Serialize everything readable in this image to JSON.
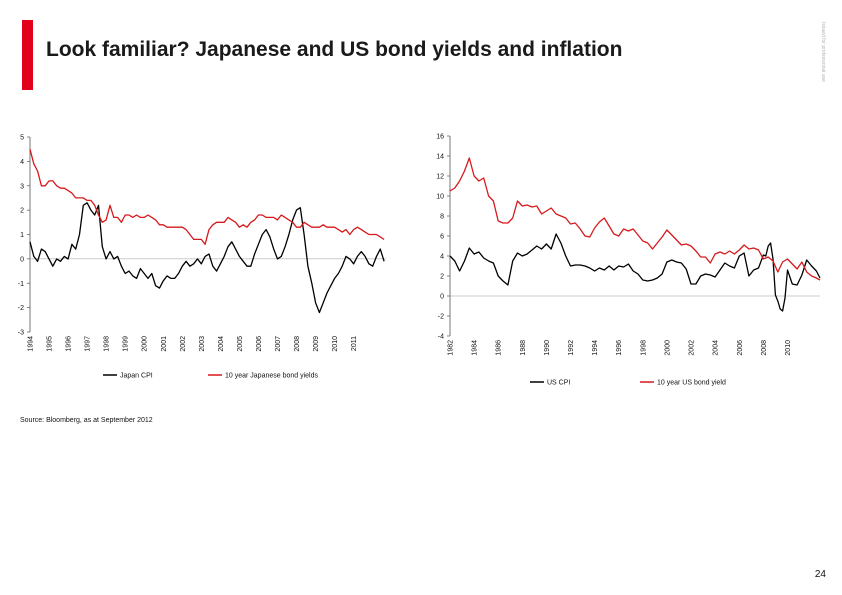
{
  "page": {
    "title": "Look familiar? Japanese and US bond yields and inflation",
    "side_note": "Issued for professional use",
    "source": "Source: Bloomberg, as at September 2012",
    "page_number": "24",
    "accent_color": "#e3001b"
  },
  "chart_data": [
    {
      "type": "line",
      "title": "",
      "ylim": [
        -3,
        5
      ],
      "yticks": [
        "5",
        "4",
        "3",
        "2",
        "1",
        "0",
        "-1",
        "-2",
        "-3"
      ],
      "xlim": [
        1994,
        2012.7
      ],
      "xticks": [
        "1994",
        "1995",
        "1996",
        "1997",
        "1998",
        "1999",
        "2000",
        "2001",
        "2002",
        "2003",
        "2004",
        "2005",
        "2006",
        "2007",
        "2008",
        "2009",
        "2010",
        "2011"
      ],
      "grid": false,
      "legend": "bottom",
      "series": [
        {
          "name": "Japan CPI",
          "color": "#000000",
          "x": [
            1994.0,
            1994.2,
            1994.4,
            1994.6,
            1994.8,
            1995.0,
            1995.2,
            1995.4,
            1995.6,
            1995.8,
            1996.0,
            1996.2,
            1996.4,
            1996.6,
            1996.8,
            1997.0,
            1997.2,
            1997.4,
            1997.6,
            1997.8,
            1998.0,
            1998.2,
            1998.4,
            1998.6,
            1998.8,
            1999.0,
            1999.2,
            1999.4,
            1999.6,
            1999.8,
            2000.0,
            2000.2,
            2000.4,
            2000.6,
            2000.8,
            2001.0,
            2001.2,
            2001.4,
            2001.6,
            2001.8,
            2002.0,
            2002.2,
            2002.4,
            2002.6,
            2002.8,
            2003.0,
            2003.2,
            2003.4,
            2003.6,
            2003.8,
            2004.0,
            2004.2,
            2004.4,
            2004.6,
            2004.8,
            2005.0,
            2005.2,
            2005.4,
            2005.6,
            2005.8,
            2006.0,
            2006.2,
            2006.4,
            2006.6,
            2006.8,
            2007.0,
            2007.2,
            2007.4,
            2007.6,
            2007.8,
            2008.0,
            2008.2,
            2008.4,
            2008.6,
            2008.8,
            2009.0,
            2009.2,
            2009.4,
            2009.6,
            2009.8,
            2010.0,
            2010.2,
            2010.4,
            2010.6,
            2010.8,
            2011.0,
            2011.2,
            2011.4,
            2011.6,
            2011.8,
            2012.0,
            2012.2,
            2012.4,
            2012.6
          ],
          "y": [
            0.7,
            0.1,
            -0.1,
            0.4,
            0.3,
            0.0,
            -0.3,
            0.0,
            -0.1,
            0.1,
            0.0,
            0.6,
            0.4,
            1.0,
            2.2,
            2.3,
            2.0,
            1.8,
            2.2,
            0.5,
            0.0,
            0.3,
            0.0,
            0.1,
            -0.3,
            -0.6,
            -0.5,
            -0.7,
            -0.8,
            -0.4,
            -0.6,
            -0.8,
            -0.6,
            -1.1,
            -1.2,
            -0.9,
            -0.7,
            -0.8,
            -0.8,
            -0.6,
            -0.3,
            -0.1,
            -0.3,
            -0.2,
            0.0,
            -0.2,
            0.1,
            0.2,
            -0.3,
            -0.5,
            -0.2,
            0.1,
            0.5,
            0.7,
            0.4,
            0.1,
            -0.1,
            -0.3,
            -0.3,
            0.2,
            0.6,
            1.0,
            1.2,
            0.9,
            0.4,
            0.0,
            0.1,
            0.5,
            1.0,
            1.6,
            2.0,
            2.1,
            1.0,
            -0.3,
            -1.0,
            -1.8,
            -2.2,
            -1.8,
            -1.4,
            -1.1,
            -0.8,
            -0.6,
            -0.3,
            0.1,
            0.0,
            -0.2,
            0.1,
            0.3,
            0.1,
            -0.2,
            -0.3,
            0.1,
            0.4,
            -0.1
          ]
        },
        {
          "name": "10 year Japanese bond yields",
          "color": "#d7191c",
          "x": [
            1994.0,
            1994.2,
            1994.4,
            1994.6,
            1994.8,
            1995.0,
            1995.2,
            1995.4,
            1995.6,
            1995.8,
            1996.0,
            1996.2,
            1996.4,
            1996.6,
            1996.8,
            1997.0,
            1997.2,
            1997.4,
            1997.6,
            1997.8,
            1998.0,
            1998.2,
            1998.4,
            1998.6,
            1998.8,
            1999.0,
            1999.2,
            1999.4,
            1999.6,
            1999.8,
            2000.0,
            2000.2,
            2000.4,
            2000.6,
            2000.8,
            2001.0,
            2001.2,
            2001.4,
            2001.6,
            2001.8,
            2002.0,
            2002.2,
            2002.4,
            2002.6,
            2002.8,
            2003.0,
            2003.2,
            2003.4,
            2003.6,
            2003.8,
            2004.0,
            2004.2,
            2004.4,
            2004.6,
            2004.8,
            2005.0,
            2005.2,
            2005.4,
            2005.6,
            2005.8,
            2006.0,
            2006.2,
            2006.4,
            2006.6,
            2006.8,
            2007.0,
            2007.2,
            2007.4,
            2007.6,
            2007.8,
            2008.0,
            2008.2,
            2008.4,
            2008.6,
            2008.8,
            2009.0,
            2009.2,
            2009.4,
            2009.6,
            2009.8,
            2010.0,
            2010.2,
            2010.4,
            2010.6,
            2010.8,
            2011.0,
            2011.2,
            2011.4,
            2011.6,
            2011.8,
            2012.0,
            2012.2,
            2012.4,
            2012.6
          ],
          "y": [
            4.5,
            3.9,
            3.6,
            3.0,
            3.0,
            3.2,
            3.2,
            3.0,
            2.9,
            2.9,
            2.8,
            2.7,
            2.5,
            2.5,
            2.5,
            2.4,
            2.4,
            2.2,
            1.8,
            1.5,
            1.6,
            2.2,
            1.7,
            1.7,
            1.5,
            1.8,
            1.8,
            1.7,
            1.8,
            1.7,
            1.7,
            1.8,
            1.7,
            1.6,
            1.4,
            1.4,
            1.3,
            1.3,
            1.3,
            1.3,
            1.3,
            1.2,
            1.0,
            0.8,
            0.8,
            0.8,
            0.6,
            1.2,
            1.4,
            1.5,
            1.5,
            1.5,
            1.7,
            1.6,
            1.5,
            1.3,
            1.4,
            1.3,
            1.5,
            1.6,
            1.8,
            1.8,
            1.7,
            1.7,
            1.7,
            1.6,
            1.8,
            1.7,
            1.6,
            1.5,
            1.3,
            1.3,
            1.5,
            1.4,
            1.3,
            1.3,
            1.3,
            1.4,
            1.3,
            1.3,
            1.3,
            1.2,
            1.1,
            1.2,
            1.0,
            1.2,
            1.3,
            1.2,
            1.1,
            1.0,
            1.0,
            1.0,
            0.9,
            0.8
          ]
        }
      ]
    },
    {
      "type": "line",
      "title": "",
      "ylim": [
        -4,
        16
      ],
      "yticks": [
        "16",
        "14",
        "12",
        "10",
        "8",
        "6",
        "4",
        "2",
        "0",
        "-2",
        "-4"
      ],
      "xlim": [
        1982,
        2012.7
      ],
      "xticks": [
        "1982",
        "1984",
        "1986",
        "1988",
        "1990",
        "1992",
        "1994",
        "1996",
        "1998",
        "2000",
        "2002",
        "2004",
        "2006",
        "2008",
        "2010"
      ],
      "grid": false,
      "legend": "bottom",
      "series": [
        {
          "name": "US CPI",
          "color": "#000000",
          "x": [
            1982.0,
            1982.4,
            1982.8,
            1983.2,
            1983.6,
            1984.0,
            1984.4,
            1984.8,
            1985.2,
            1985.6,
            1986.0,
            1986.4,
            1986.8,
            1987.2,
            1987.6,
            1988.0,
            1988.4,
            1988.8,
            1989.2,
            1989.6,
            1990.0,
            1990.4,
            1990.8,
            1991.2,
            1991.6,
            1992.0,
            1992.4,
            1992.8,
            1993.2,
            1993.6,
            1994.0,
            1994.4,
            1994.8,
            1995.2,
            1995.6,
            1996.0,
            1996.4,
            1996.8,
            1997.2,
            1997.6,
            1998.0,
            1998.4,
            1998.8,
            1999.2,
            1999.6,
            2000.0,
            2000.4,
            2000.8,
            2001.2,
            2001.6,
            2002.0,
            2002.4,
            2002.8,
            2003.2,
            2003.6,
            2004.0,
            2004.4,
            2004.8,
            2005.2,
            2005.6,
            2006.0,
            2006.4,
            2006.8,
            2007.2,
            2007.6,
            2008.0,
            2008.2,
            2008.4,
            2008.6,
            2008.8,
            2009.0,
            2009.2,
            2009.4,
            2009.6,
            2009.8,
            2010.0,
            2010.4,
            2010.8,
            2011.2,
            2011.6,
            2012.0,
            2012.4,
            2012.7
          ],
          "y": [
            4.0,
            3.5,
            2.5,
            3.5,
            4.8,
            4.2,
            4.4,
            3.8,
            3.5,
            3.3,
            2.0,
            1.5,
            1.1,
            3.5,
            4.3,
            4.0,
            4.2,
            4.6,
            5.0,
            4.7,
            5.2,
            4.7,
            6.2,
            5.3,
            4.0,
            3.0,
            3.1,
            3.1,
            3.0,
            2.8,
            2.5,
            2.8,
            2.6,
            3.0,
            2.6,
            3.0,
            2.9,
            3.2,
            2.5,
            2.2,
            1.6,
            1.5,
            1.6,
            1.8,
            2.2,
            3.4,
            3.6,
            3.4,
            3.3,
            2.7,
            1.2,
            1.2,
            2.0,
            2.2,
            2.1,
            1.9,
            2.6,
            3.3,
            3.0,
            2.8,
            4.0,
            4.3,
            2.0,
            2.6,
            2.8,
            4.1,
            4.0,
            5.0,
            5.3,
            3.7,
            0.1,
            -0.5,
            -1.3,
            -1.5,
            -0.2,
            2.6,
            1.2,
            1.1,
            2.1,
            3.6,
            3.0,
            2.5,
            1.8
          ]
        },
        {
          "name": "10 year US bond yield",
          "color": "#d7191c",
          "x": [
            1982.0,
            1982.4,
            1982.8,
            1983.2,
            1983.6,
            1984.0,
            1984.4,
            1984.8,
            1985.2,
            1985.6,
            1986.0,
            1986.4,
            1986.8,
            1987.2,
            1987.6,
            1988.0,
            1988.4,
            1988.8,
            1989.2,
            1989.6,
            1990.0,
            1990.4,
            1990.8,
            1991.2,
            1991.6,
            1992.0,
            1992.4,
            1992.8,
            1993.2,
            1993.6,
            1994.0,
            1994.4,
            1994.8,
            1995.2,
            1995.6,
            1996.0,
            1996.4,
            1996.8,
            1997.2,
            1997.6,
            1998.0,
            1998.4,
            1998.8,
            1999.2,
            1999.6,
            2000.0,
            2000.4,
            2000.8,
            2001.2,
            2001.6,
            2002.0,
            2002.4,
            2002.8,
            2003.2,
            2003.6,
            2004.0,
            2004.4,
            2004.8,
            2005.2,
            2005.6,
            2006.0,
            2006.4,
            2006.8,
            2007.2,
            2007.6,
            2008.0,
            2008.4,
            2008.8,
            2009.2,
            2009.6,
            2010.0,
            2010.4,
            2010.8,
            2011.2,
            2011.6,
            2012.0,
            2012.4,
            2012.7
          ],
          "y": [
            10.5,
            10.8,
            11.5,
            12.5,
            13.8,
            12.0,
            11.5,
            11.8,
            10.0,
            9.5,
            7.5,
            7.3,
            7.3,
            7.8,
            9.5,
            9.0,
            9.1,
            8.9,
            9.0,
            8.2,
            8.5,
            8.8,
            8.2,
            8.0,
            7.8,
            7.2,
            7.3,
            6.7,
            6.0,
            5.9,
            6.8,
            7.4,
            7.8,
            7.0,
            6.2,
            6.0,
            6.7,
            6.5,
            6.7,
            6.1,
            5.5,
            5.3,
            4.7,
            5.3,
            5.9,
            6.6,
            6.1,
            5.6,
            5.1,
            5.2,
            5.0,
            4.5,
            3.9,
            3.9,
            3.3,
            4.2,
            4.4,
            4.2,
            4.5,
            4.2,
            4.6,
            5.1,
            4.7,
            4.8,
            4.6,
            3.7,
            3.9,
            3.5,
            2.4,
            3.4,
            3.7,
            3.2,
            2.7,
            3.4,
            2.4,
            2.0,
            1.8,
            1.6
          ]
        }
      ]
    }
  ]
}
